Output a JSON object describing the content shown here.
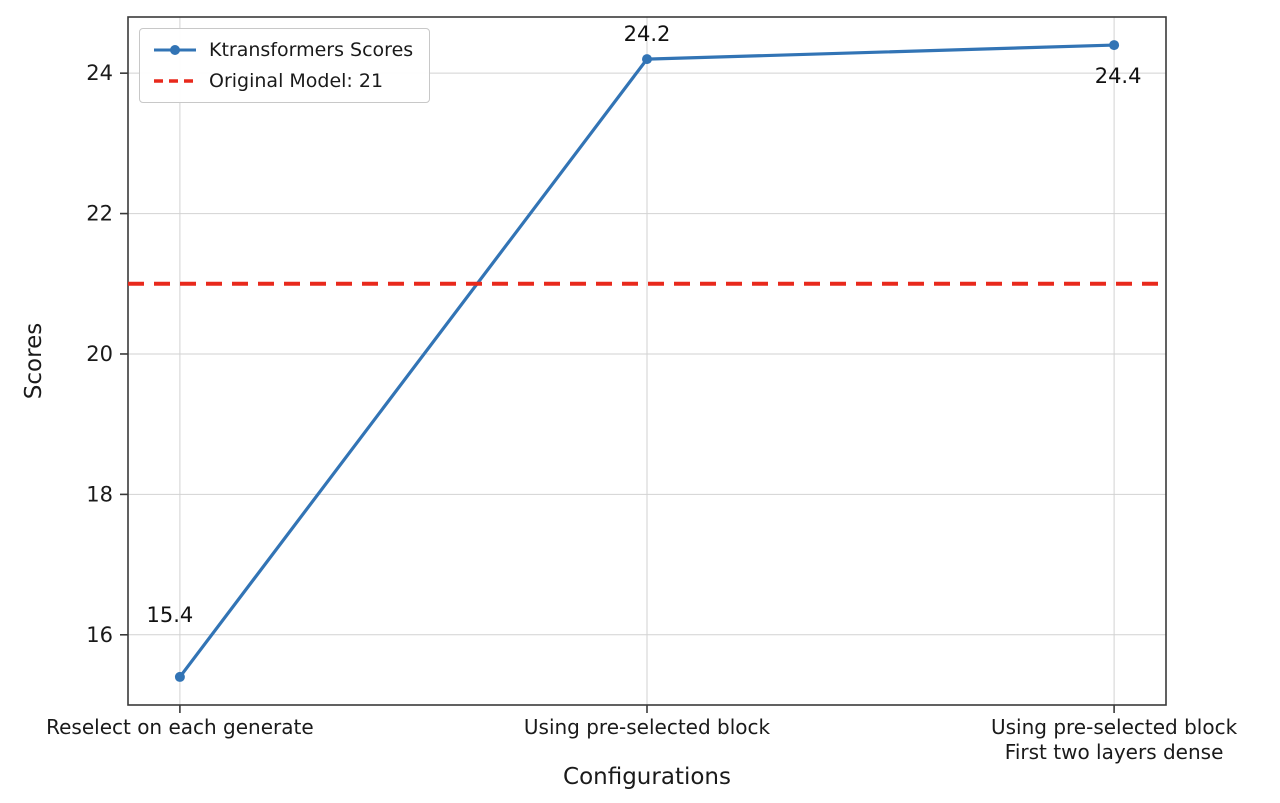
{
  "chart_data": {
    "type": "line",
    "title": "",
    "xlabel": "Configurations",
    "ylabel": "Scores",
    "categories": [
      "Reselect on each generate",
      "Using pre-selected block",
      "Using pre-selected block\nFirst two layers dense"
    ],
    "series": [
      {
        "name": "Ktransformers Scores",
        "values": [
          15.4,
          24.2,
          24.4
        ],
        "color": "#3274b5",
        "marker": "circle",
        "style": "solid"
      }
    ],
    "reference_line": {
      "label": "Original Model: 21",
      "value": 21,
      "color": "#e8291c",
      "style": "dashed"
    },
    "point_labels": [
      "15.4",
      "24.2",
      "24.4"
    ],
    "yticks": [
      16,
      18,
      20,
      22,
      24
    ],
    "ylim": [
      15.0,
      24.8
    ],
    "grid": true,
    "legend_position": "upper-left"
  }
}
